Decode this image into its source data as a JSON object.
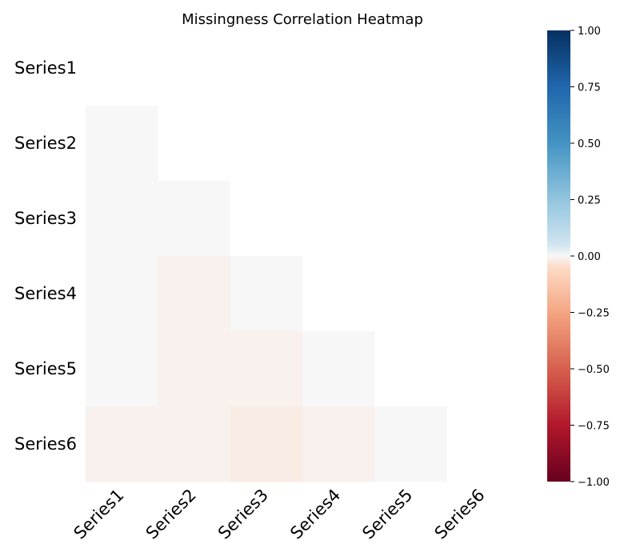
{
  "chart_data": {
    "type": "heatmap",
    "title": "Missingness Correlation Heatmap",
    "rows": [
      "Series1",
      "Series2",
      "Series3",
      "Series4",
      "Series5",
      "Series6"
    ],
    "columns": [
      "Series1",
      "Series2",
      "Series3",
      "Series4",
      "Series5",
      "Series6"
    ],
    "mask": "upper-triangle-including-diagonal",
    "values": [
      [
        null,
        null,
        null,
        null,
        null,
        null
      ],
      [
        0.0,
        null,
        null,
        null,
        null,
        null
      ],
      [
        0.0,
        0.0,
        null,
        null,
        null,
        null
      ],
      [
        0.0,
        -0.01,
        0.0,
        null,
        null,
        null
      ],
      [
        0.0,
        -0.01,
        -0.01,
        0.0,
        null,
        null
      ],
      [
        -0.01,
        -0.01,
        -0.02,
        -0.01,
        0.0,
        null
      ]
    ],
    "colorbar": {
      "range": [
        -1.0,
        1.0
      ],
      "colormap": "RdBu",
      "ticks": [
        "1.00",
        "0.75",
        "0.50",
        "0.25",
        "0.00",
        "−0.25",
        "−0.50",
        "−0.75",
        "−1.00"
      ]
    },
    "grid": false
  }
}
